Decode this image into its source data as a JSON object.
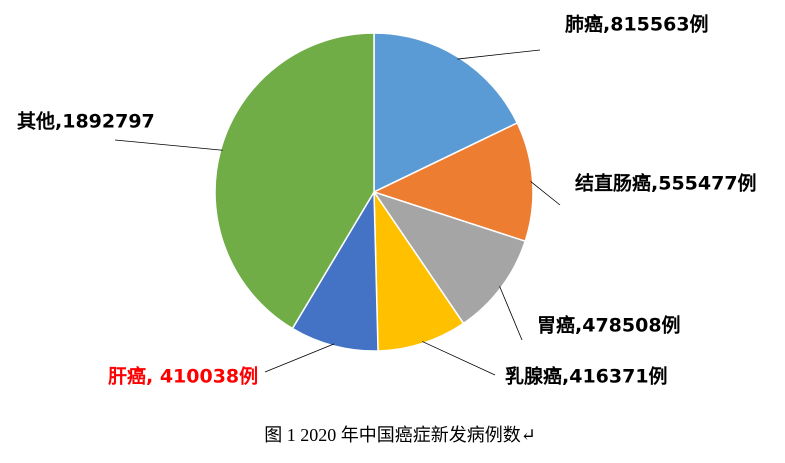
{
  "chart_data": {
    "type": "pie",
    "values": [
      815563,
      555477,
      478508,
      416371,
      410038,
      1892797
    ],
    "value_labels": [
      "肺癌,815563例",
      "结直肠癌,555477例",
      "胃癌,478508例",
      "乳腺癌,416371例",
      "肝癌, 410038例",
      "其他,1892797"
    ],
    "colors": [
      "#5b9bd5",
      "#ed7d31",
      "#a5a5a5",
      "#ffc000",
      "#4472c4",
      "#70ad47"
    ],
    "value_label_colors": [
      "#000000",
      "#000000",
      "#000000",
      "#000000",
      "#ff0000",
      "#000000"
    ],
    "caption": "图 1 2020 年中国癌症新发病例数↵"
  }
}
